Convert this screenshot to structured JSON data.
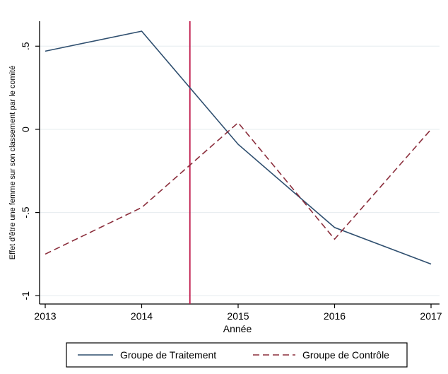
{
  "chart_data": {
    "type": "line",
    "title": "",
    "xlabel": "Année",
    "ylabel": "Effet d'être une femme sur son classement par le comité",
    "x": [
      2013,
      2014,
      2015,
      2016,
      2017
    ],
    "xlim": [
      2013,
      2017
    ],
    "ylim": [
      -1.05,
      0.65
    ],
    "xticks": [
      {
        "value": 2013,
        "label": "2013"
      },
      {
        "value": 2014,
        "label": "2014"
      },
      {
        "value": 2015,
        "label": "2015"
      },
      {
        "value": 2016,
        "label": "2016"
      },
      {
        "value": 2017,
        "label": "2017"
      }
    ],
    "yticks": [
      {
        "value": 0.5,
        "label": ".5"
      },
      {
        "value": 0,
        "label": "0"
      },
      {
        "value": -0.5,
        "label": "-.5"
      },
      {
        "value": -1,
        "label": "-1"
      }
    ],
    "grid": true,
    "vline": {
      "x": 2014.5,
      "color": "#c0184a"
    },
    "series": [
      {
        "name": "Groupe de Traitement",
        "values": [
          0.47,
          0.59,
          -0.09,
          -0.59,
          -0.81
        ],
        "color": "#2f4f6f",
        "style": "solid"
      },
      {
        "name": "Groupe de Contrôle",
        "values": [
          -0.75,
          -0.47,
          0.04,
          -0.66,
          0.0
        ],
        "color": "#8b2e3c",
        "style": "dashed"
      }
    ],
    "legend": {
      "position": "bottom"
    }
  }
}
